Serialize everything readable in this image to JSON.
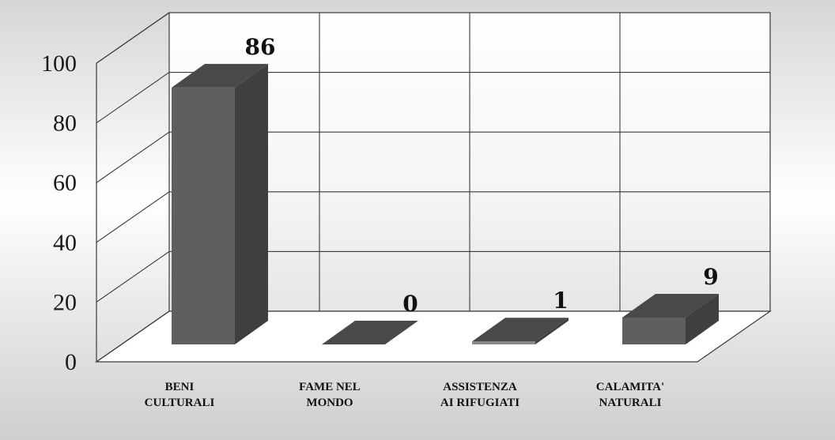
{
  "chart_data": {
    "type": "bar",
    "title": "",
    "xlabel": "",
    "ylabel": "",
    "categories": [
      [
        "BENI",
        "CULTURALI"
      ],
      [
        "FAME NEL",
        "MONDO"
      ],
      [
        "ASSISTENZA",
        "AI RIFUGIATI"
      ],
      [
        "CALAMITA'",
        "NATURALI"
      ]
    ],
    "values": [
      86,
      0,
      1,
      9
    ],
    "ylim": [
      0,
      100
    ],
    "yticks": [
      0,
      20,
      40,
      60,
      80,
      100
    ],
    "grid": true,
    "legend": "none",
    "three_d": true,
    "colors": {
      "bar_front": "#5f5f5f",
      "bar_side": "#3f3f3f",
      "bar_top": "#494949",
      "small_bar_front": "#8a8a8a",
      "grid": "#3a3a3a"
    }
  }
}
